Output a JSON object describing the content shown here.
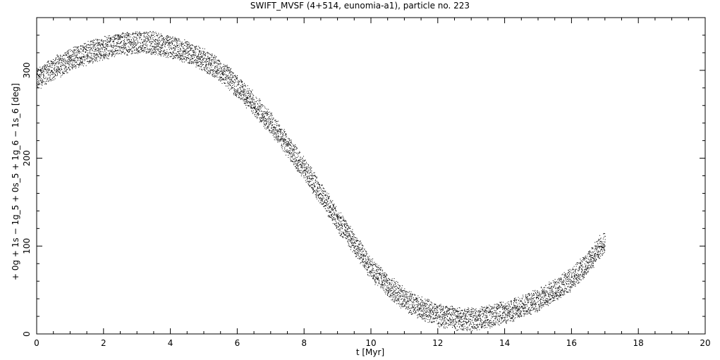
{
  "chart_data": {
    "type": "scatter",
    "title": "SWIFT_MVSF (4+514, eunomia-a1), particle no. 223",
    "xlabel": "t [Myr]",
    "ylabel": "+ 0g + 1s − 1g_5 + 0s_5 + 1g_6 − 1s_6 [deg]",
    "xlim": [
      0,
      20
    ],
    "ylim": [
      0,
      360
    ],
    "xticks": [
      0,
      2,
      4,
      6,
      8,
      10,
      12,
      14,
      16,
      18,
      20
    ],
    "yticks": [
      0,
      100,
      200,
      300
    ],
    "grid": false,
    "legend": "none",
    "marker_color": "#000000",
    "series": [
      {
        "x": [
          0.0,
          0.5,
          1.0,
          1.5,
          2.0,
          2.5,
          3.0,
          3.5,
          4.0,
          4.5,
          5.0,
          5.5,
          6.0,
          6.5,
          7.0,
          7.5,
          8.0,
          8.5,
          9.0,
          9.5,
          10.0,
          10.5,
          11.0,
          11.5,
          12.0,
          12.5,
          13.0,
          13.5,
          14.0,
          14.5,
          15.0,
          15.5,
          16.0,
          16.5,
          17.0
        ],
        "y": [
          290,
          302,
          313,
          320,
          326,
          330,
          332,
          331,
          327,
          321,
          312,
          300,
          282,
          262,
          240,
          214,
          188,
          160,
          130,
          103,
          75,
          55,
          40,
          30,
          22,
          18,
          17,
          20,
          25,
          31,
          39,
          50,
          63,
          82,
          107
        ],
        "spread": 12
      }
    ]
  }
}
